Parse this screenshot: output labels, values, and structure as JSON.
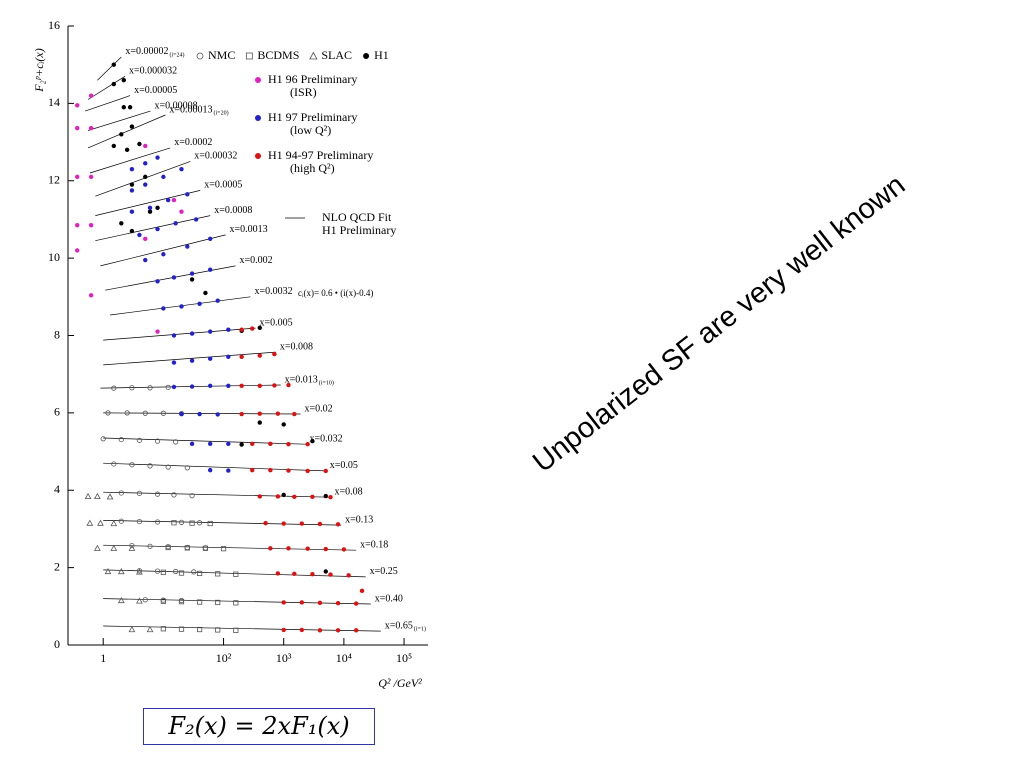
{
  "chart_data": {
    "type": "scatter",
    "y_label": "F₂ᵖ+cᵢ(x)",
    "x_label": "Q² /GeV²",
    "xlog": true,
    "xlim": [
      0.26,
      250000
    ],
    "ylim": [
      0,
      16
    ],
    "xticks": [
      1,
      {
        "value": 100,
        "label": "10²"
      },
      {
        "value": 1000,
        "label": "10³"
      },
      {
        "value": 10000,
        "label": "10⁴"
      },
      {
        "value": 100000,
        "label": "10⁵"
      }
    ],
    "yticks": [
      0,
      2,
      4,
      6,
      8,
      10,
      12,
      14,
      16
    ],
    "legend_position": "upper right",
    "annotation": "cᵢ(x)= 0.6 • (i(x)-0.4)",
    "series": [
      {
        "name": "NMC",
        "marker": "circle-open",
        "color": "#555555",
        "x": [
          1.5,
          3,
          6,
          12,
          1.2,
          2.5,
          5,
          10,
          20,
          1,
          2,
          4,
          8,
          16,
          1.5,
          3,
          6,
          12,
          25,
          2,
          4,
          8,
          15,
          30,
          2,
          4,
          8,
          20,
          40,
          3,
          6,
          12,
          25,
          50,
          4,
          8,
          16,
          32,
          5,
          10,
          20
        ],
        "values": [
          6.64,
          6.65,
          6.65,
          6.66,
          6.0,
          6.0,
          5.99,
          5.99,
          5.98,
          5.33,
          5.31,
          5.29,
          5.27,
          5.25,
          4.68,
          4.66,
          4.63,
          4.6,
          4.58,
          3.93,
          3.92,
          3.9,
          3.88,
          3.86,
          3.2,
          3.19,
          3.18,
          3.17,
          3.16,
          2.57,
          2.55,
          2.54,
          2.52,
          2.51,
          1.92,
          1.91,
          1.9,
          1.89,
          1.17,
          1.16,
          1.15
        ]
      },
      {
        "name": "BCDMS",
        "marker": "square-open",
        "color": "#555555",
        "x": [
          15,
          30,
          60,
          12,
          25,
          50,
          100,
          10,
          20,
          40,
          80,
          160,
          10,
          20,
          40,
          80,
          160,
          10,
          20,
          40,
          80,
          160
        ],
        "values": [
          3.16,
          3.15,
          3.14,
          2.52,
          2.51,
          2.5,
          2.49,
          1.88,
          1.86,
          1.85,
          1.84,
          1.83,
          1.13,
          1.12,
          1.11,
          1.1,
          1.09,
          0.42,
          0.41,
          0.4,
          0.39,
          0.38
        ]
      },
      {
        "name": "SLAC",
        "marker": "triangle-open",
        "color": "#555555",
        "x": [
          0.56,
          0.8,
          1.3,
          0.6,
          0.9,
          1.5,
          0.8,
          1.5,
          3,
          1.2,
          2,
          4,
          2,
          4,
          3,
          6
        ],
        "values": [
          3.84,
          3.84,
          3.83,
          3.15,
          3.15,
          3.14,
          2.5,
          2.5,
          2.5,
          1.9,
          1.9,
          1.89,
          1.15,
          1.14,
          0.4,
          0.4
        ]
      },
      {
        "name": "H1",
        "marker": "dot",
        "color": "#000000",
        "x": [
          1.5,
          1.5,
          2.2,
          2.2,
          2.8,
          1.5,
          2,
          3,
          2.5,
          4,
          3,
          5,
          6,
          8,
          2,
          3,
          30,
          50,
          200,
          400,
          400,
          1000,
          200,
          3000,
          1000,
          5000,
          5000
        ],
        "values": [
          15.0,
          14.5,
          14.6,
          13.9,
          13.9,
          12.9,
          13.2,
          13.4,
          12.8,
          12.95,
          11.9,
          12.1,
          11.2,
          11.3,
          10.9,
          10.7,
          9.45,
          9.1,
          8.12,
          8.2,
          5.75,
          5.7,
          5.18,
          5.27,
          3.88,
          3.85,
          1.9
        ]
      },
      {
        "name": "H1 96 Preliminary\n(ISR)",
        "marker": "dot",
        "color": "#e020c0",
        "x": [
          0.37,
          0.37,
          0.37,
          0.37,
          0.37,
          0.63,
          0.63,
          0.63,
          0.63,
          0.63,
          5,
          15,
          20,
          8,
          5
        ],
        "values": [
          13.95,
          13.36,
          12.1,
          10.85,
          10.2,
          14.2,
          13.36,
          12.1,
          10.85,
          9.04,
          12.9,
          11.5,
          11.2,
          8.1,
          10.5
        ]
      },
      {
        "name": "H1 97 Preliminary\n(low Q²)",
        "marker": "dot",
        "color": "#2222cc",
        "x": [
          3,
          5,
          8,
          3,
          5,
          10,
          20,
          3,
          6,
          12,
          25,
          4,
          8,
          16,
          35,
          5,
          10,
          25,
          60,
          8,
          15,
          30,
          60,
          10,
          20,
          40,
          80,
          15,
          30,
          60,
          120,
          15,
          30,
          60,
          120,
          15,
          30,
          60,
          120,
          20,
          40,
          80,
          30,
          60,
          120,
          60,
          120
        ],
        "values": [
          12.3,
          12.45,
          12.6,
          11.75,
          11.9,
          12.1,
          12.3,
          11.2,
          11.3,
          11.5,
          11.65,
          10.6,
          10.75,
          10.9,
          11.0,
          9.95,
          10.1,
          10.3,
          10.5,
          9.4,
          9.5,
          9.6,
          9.7,
          8.7,
          8.75,
          8.82,
          8.9,
          8.0,
          8.05,
          8.1,
          8.15,
          7.3,
          7.35,
          7.4,
          7.45,
          6.67,
          6.68,
          6.7,
          6.7,
          5.97,
          5.97,
          5.96,
          5.2,
          5.2,
          5.2,
          4.52,
          4.51
        ]
      },
      {
        "name": "H1 94-97 Preliminary\n(high Q²)",
        "marker": "dot",
        "color": "#dd1111",
        "x": [
          200,
          300,
          200,
          400,
          700,
          200,
          400,
          700,
          1200,
          200,
          400,
          800,
          1500,
          300,
          600,
          1200,
          2500,
          300,
          600,
          1200,
          2500,
          5000,
          400,
          800,
          1500,
          3000,
          6000,
          500,
          1000,
          2000,
          4000,
          8000,
          600,
          1200,
          2500,
          5000,
          10000,
          800,
          1500,
          3000,
          6000,
          12000,
          20000,
          1000,
          2000,
          4000,
          8000,
          16000,
          1000,
          2000,
          4000,
          8000,
          16000
        ],
        "values": [
          8.15,
          8.18,
          7.45,
          7.48,
          7.52,
          6.7,
          6.7,
          6.71,
          6.72,
          5.97,
          5.98,
          5.98,
          5.97,
          5.2,
          5.2,
          5.19,
          5.19,
          4.52,
          4.52,
          4.51,
          4.5,
          4.5,
          3.84,
          3.84,
          3.83,
          3.83,
          3.82,
          3.15,
          3.14,
          3.14,
          3.13,
          3.12,
          2.5,
          2.5,
          2.49,
          2.48,
          2.47,
          1.85,
          1.84,
          1.83,
          1.82,
          1.8,
          1.4,
          1.1,
          1.1,
          1.09,
          1.08,
          1.07,
          0.39,
          0.39,
          0.38,
          0.38,
          0.38
        ]
      }
    ],
    "fit": {
      "name": "NLO QCD Fit\nH1 Preliminary",
      "color": "#000000",
      "bins": [
        {
          "label": "x=0.00002",
          "note": "(i=24)",
          "x": [
            0.8,
            2
          ],
          "values": [
            14.6,
            15.2
          ]
        },
        {
          "label": "x=0.000032",
          "x": [
            0.56,
            2.3
          ],
          "values": [
            14.1,
            14.7
          ]
        },
        {
          "label": "x=0.00005",
          "x": [
            0.5,
            2.8
          ],
          "values": [
            13.8,
            14.2
          ]
        },
        {
          "label": "x=0.00008",
          "x": [
            0.56,
            6.1
          ],
          "values": [
            13.3,
            13.8
          ]
        },
        {
          "label": "x=0.00013",
          "note": "(i=20)",
          "x": [
            0.56,
            10.8
          ],
          "values": [
            12.85,
            13.7
          ]
        },
        {
          "label": "x=0.0002",
          "x": [
            0.6,
            13
          ],
          "values": [
            12.2,
            12.85
          ]
        },
        {
          "label": "x=0.00032",
          "x": [
            0.74,
            28
          ],
          "values": [
            11.6,
            12.5
          ]
        },
        {
          "label": "x=0.0005",
          "x": [
            0.74,
            41
          ],
          "values": [
            11.1,
            11.75
          ]
        },
        {
          "label": "x=0.0008",
          "x": [
            0.74,
            60
          ],
          "values": [
            10.45,
            11.1
          ]
        },
        {
          "label": "x=0.0013",
          "x": [
            0.9,
            108
          ],
          "values": [
            9.8,
            10.6
          ]
        },
        {
          "label": "x=0.002",
          "x": [
            1.08,
            158
          ],
          "values": [
            9.17,
            9.8
          ]
        },
        {
          "label": "x=0.0032",
          "x": [
            1.3,
            280
          ],
          "values": [
            8.53,
            9.0
          ]
        },
        {
          "label": "x=0.005",
          "x": [
            1,
            340
          ],
          "values": [
            7.88,
            8.19
          ]
        },
        {
          "label": "x=0.008",
          "x": [
            1,
            740
          ],
          "values": [
            7.24,
            7.57
          ]
        },
        {
          "label": "x=0.013",
          "note": "(i=10)",
          "x": [
            0.9,
            890
          ],
          "values": [
            6.64,
            6.72
          ]
        },
        {
          "label": "x=0.02",
          "x": [
            1,
            1900
          ],
          "values": [
            6.0,
            5.97
          ]
        },
        {
          "label": "x=0.032",
          "x": [
            1,
            2300
          ],
          "values": [
            5.35,
            5.19
          ]
        },
        {
          "label": "x=0.05",
          "x": [
            1,
            5000
          ],
          "values": [
            4.7,
            4.5
          ]
        },
        {
          "label": "x=0.08",
          "x": [
            1,
            6000
          ],
          "values": [
            3.95,
            3.82
          ]
        },
        {
          "label": "x=0.13",
          "x": [
            1,
            9000
          ],
          "values": [
            3.22,
            3.1
          ]
        },
        {
          "label": "x=0.18",
          "x": [
            1,
            16000
          ],
          "values": [
            2.58,
            2.45
          ]
        },
        {
          "label": "x=0.25",
          "x": [
            1,
            23000
          ],
          "values": [
            1.94,
            1.76
          ]
        },
        {
          "label": "x=0.40",
          "x": [
            1,
            28000
          ],
          "values": [
            1.2,
            1.06
          ]
        },
        {
          "label": "x=0.65",
          "note": "(i=1)",
          "x": [
            1,
            41000
          ],
          "values": [
            0.49,
            0.36
          ]
        }
      ]
    }
  },
  "slide": {
    "text": "Unpolarized SF are very well known",
    "formula": "F₂(x) = 2xF₁(x)"
  }
}
